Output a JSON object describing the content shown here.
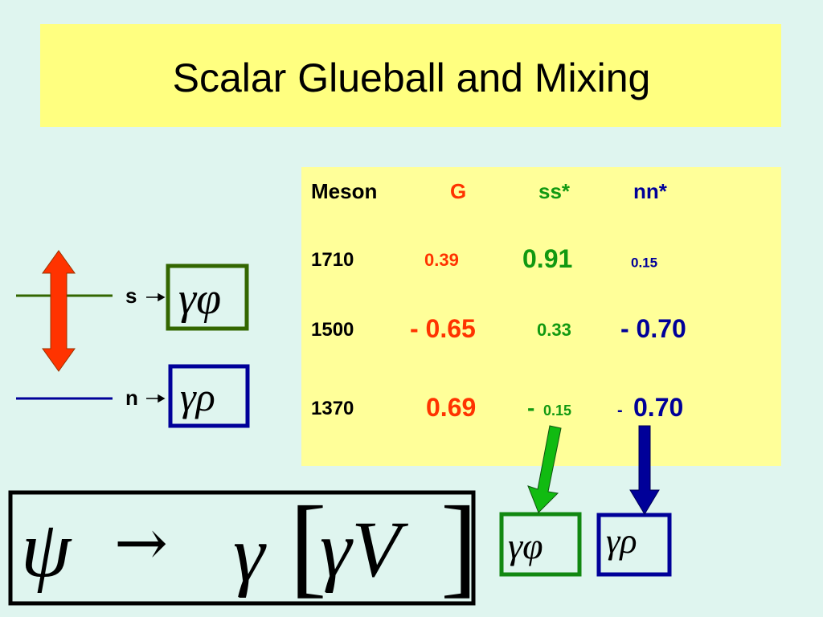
{
  "title": "Scalar Glueball and Mixing",
  "table": {
    "header": [
      "Meson",
      "G",
      "ss*",
      "nn*"
    ],
    "rows": [
      [
        "1710",
        "0.39",
        "0.91",
        "0.15"
      ],
      [
        "1500",
        "- 0.65",
        "0.33",
        "- 0.70"
      ],
      [
        "1370",
        "0.69",
        [
          "-",
          "0.15"
        ],
        [
          "-",
          "0.70"
        ]
      ]
    ]
  },
  "levels": [
    {
      "label": "s",
      "state": "γφ"
    },
    {
      "label": "n",
      "state": "γρ"
    }
  ],
  "formula": [
    "ψ",
    "→",
    "γ",
    "[",
    "γV",
    "]"
  ],
  "decays": [
    "γφ",
    "γρ"
  ]
}
